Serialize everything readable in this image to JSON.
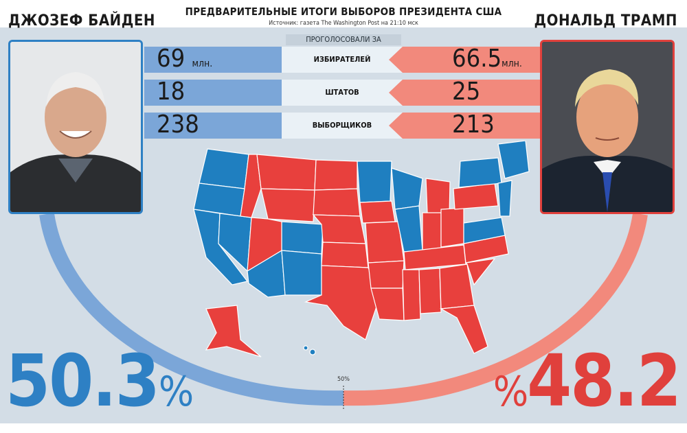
{
  "header": {
    "title": "ПРЕДВАРИТЕЛЬНЫЕ ИТОГИ ВЫБОРОВ ПРЕЗИДЕНТА США",
    "source": "Источник: газета The Washington Post на 21:10 мск"
  },
  "subtitle": "ПРОГОЛОСОВАЛИ ЗА",
  "candidates": {
    "left": {
      "name": "ДЖОЗЕФ БАЙДЕН",
      "color": "#2e80c4",
      "percent": "50.3",
      "percent_sign": "%",
      "photo": "biden-portrait"
    },
    "right": {
      "name": "ДОНАЛЬД ТРАМП",
      "color": "#e0403c",
      "percent": "48.2",
      "percent_sign": "%",
      "photo": "trump-portrait"
    }
  },
  "stats": [
    {
      "label": "ИЗБИРАТЕЛЕЙ",
      "left": "69",
      "left_unit": "млн.",
      "right": "66.5",
      "right_unit": "млн."
    },
    {
      "label": "ШТАТОВ",
      "left": "18",
      "left_unit": "",
      "right": "25",
      "right_unit": ""
    },
    {
      "label": "ВЫБОРЩИКОВ",
      "left": "238",
      "left_unit": "",
      "right": "213",
      "right_unit": ""
    }
  ],
  "gauge": {
    "midpoint_label": "50%",
    "left_share": 50.3,
    "right_share": 48.2
  },
  "map": {
    "name": "us-states-map",
    "blue": "#1f7fc0",
    "red": "#e8403d"
  }
}
